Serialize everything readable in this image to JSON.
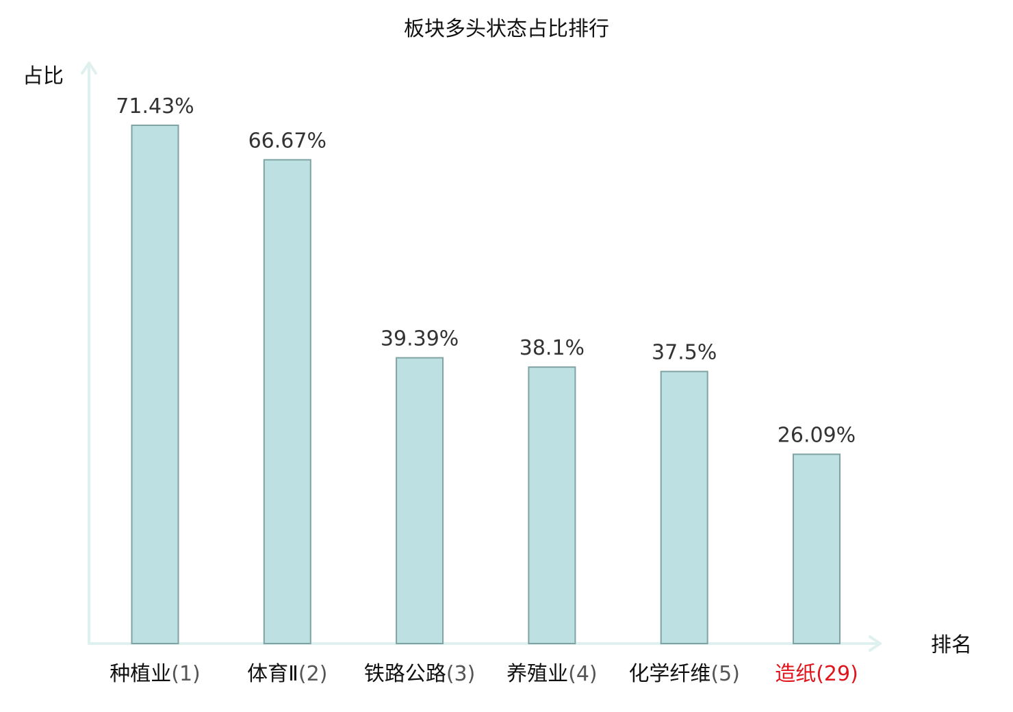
{
  "chart_data": {
    "type": "bar",
    "title": "板块多头状态占比排行",
    "ylabel": "占比",
    "xlabel": "排名",
    "ylim": [
      0,
      80
    ],
    "grid": false,
    "categories": [
      {
        "name": "种植业",
        "rank": "(1)",
        "highlight": false
      },
      {
        "name": "体育Ⅱ",
        "rank": "(2)",
        "highlight": false
      },
      {
        "name": "铁路公路",
        "rank": "(3)",
        "highlight": false
      },
      {
        "name": "养殖业",
        "rank": "(4)",
        "highlight": false
      },
      {
        "name": "化学纤维",
        "rank": "(5)",
        "highlight": false
      },
      {
        "name": "造纸",
        "rank": "(29)",
        "highlight": true
      }
    ],
    "values": [
      71.43,
      66.67,
      39.39,
      38.1,
      37.5,
      26.09
    ],
    "value_labels": [
      "71.43%",
      "66.67%",
      "39.39%",
      "38.1%",
      "37.5%",
      "26.09%"
    ]
  },
  "colors": {
    "bar_fill": "#bde1e3",
    "bar_stroke": "#7fa2a3",
    "axis": "#dff1ee",
    "highlight": "#e0141b"
  }
}
